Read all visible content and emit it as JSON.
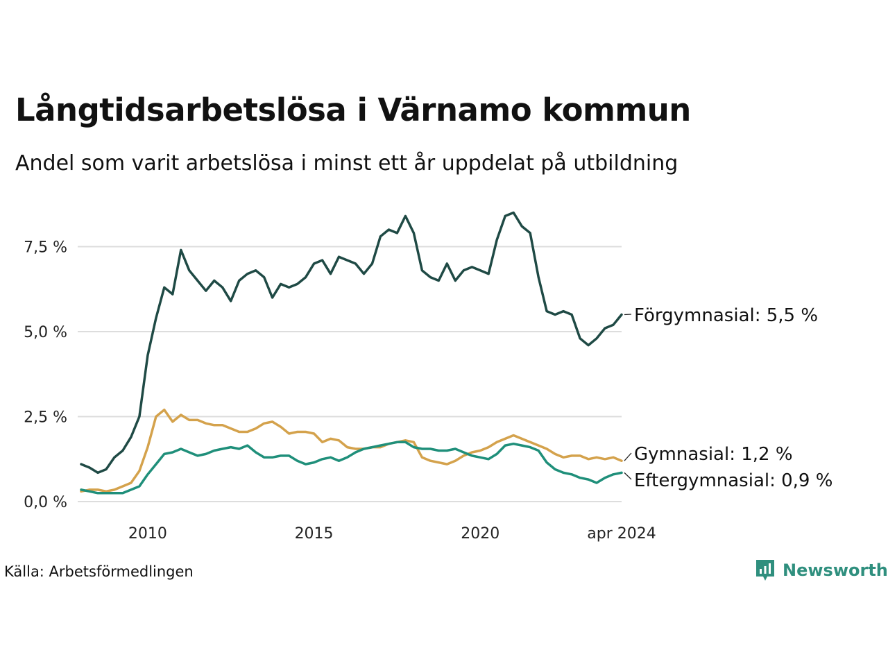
{
  "title": "Långtidsarbetslösa i Värnamo kommun",
  "subtitle": "Andel som varit arbetslösa i minst ett år uppdelat på utbildning",
  "source": "Källa: Arbetsförmedlingen",
  "brand": {
    "name": "Newsworthy",
    "icon": "bar-chart-speech-bubble-icon",
    "color": "#2f8f7e"
  },
  "chart_data": {
    "type": "line",
    "title": "Långtidsarbetslösa i Värnamo kommun",
    "subtitle": "Andel som varit arbetslösa i minst ett år uppdelat på utbildning",
    "xlabel": "",
    "ylabel": "",
    "x_range": [
      2008.0,
      2024.25
    ],
    "ylim": [
      0,
      9
    ],
    "y_ticks": [
      0,
      2.5,
      5,
      7.5
    ],
    "y_tick_labels": [
      "0,0 %",
      "2,5 %",
      "5,0 %",
      "7,5 %"
    ],
    "x_ticks": [
      2010,
      2015,
      2020,
      2024.25
    ],
    "x_tick_labels": [
      "2010",
      "2015",
      "2020",
      "apr 2024"
    ],
    "grid": true,
    "series": [
      {
        "name": "Förgymnasial",
        "end_label": "Förgymnasial: 5,5 %",
        "color": "#1f4a45",
        "x": [
          2008.0,
          2008.25,
          2008.5,
          2008.75,
          2009.0,
          2009.25,
          2009.5,
          2009.75,
          2010.0,
          2010.25,
          2010.5,
          2010.75,
          2011.0,
          2011.25,
          2011.5,
          2011.75,
          2012.0,
          2012.25,
          2012.5,
          2012.75,
          2013.0,
          2013.25,
          2013.5,
          2013.75,
          2014.0,
          2014.25,
          2014.5,
          2014.75,
          2015.0,
          2015.25,
          2015.5,
          2015.75,
          2016.0,
          2016.25,
          2016.5,
          2016.75,
          2017.0,
          2017.25,
          2017.5,
          2017.75,
          2018.0,
          2018.25,
          2018.5,
          2018.75,
          2019.0,
          2019.25,
          2019.5,
          2019.75,
          2020.0,
          2020.25,
          2020.5,
          2020.75,
          2021.0,
          2021.25,
          2021.5,
          2021.75,
          2022.0,
          2022.25,
          2022.5,
          2022.75,
          2023.0,
          2023.25,
          2023.5,
          2023.75,
          2024.0,
          2024.25
        ],
        "values": [
          1.1,
          1.0,
          0.85,
          0.95,
          1.3,
          1.5,
          1.9,
          2.5,
          4.3,
          5.4,
          6.3,
          6.1,
          7.4,
          6.8,
          6.5,
          6.2,
          6.5,
          6.3,
          5.9,
          6.5,
          6.7,
          6.8,
          6.6,
          6.0,
          6.4,
          6.3,
          6.4,
          6.6,
          7.0,
          7.1,
          6.7,
          7.2,
          7.1,
          7.0,
          6.7,
          7.0,
          7.8,
          8.0,
          7.9,
          8.4,
          7.9,
          6.8,
          6.6,
          6.5,
          7.0,
          6.5,
          6.8,
          6.9,
          6.8,
          6.7,
          7.7,
          8.4,
          8.5,
          8.1,
          7.9,
          6.6,
          5.6,
          5.5,
          5.6,
          5.5,
          4.8,
          4.6,
          4.8,
          5.1,
          5.2,
          5.5
        ]
      },
      {
        "name": "Gymnasial",
        "end_label": "Gymnasial: 1,2 %",
        "color": "#d4a24c",
        "x": [
          2008.0,
          2008.25,
          2008.5,
          2008.75,
          2009.0,
          2009.25,
          2009.5,
          2009.75,
          2010.0,
          2010.25,
          2010.5,
          2010.75,
          2011.0,
          2011.25,
          2011.5,
          2011.75,
          2012.0,
          2012.25,
          2012.5,
          2012.75,
          2013.0,
          2013.25,
          2013.5,
          2013.75,
          2014.0,
          2014.25,
          2014.5,
          2014.75,
          2015.0,
          2015.25,
          2015.5,
          2015.75,
          2016.0,
          2016.25,
          2016.5,
          2016.75,
          2017.0,
          2017.25,
          2017.5,
          2017.75,
          2018.0,
          2018.25,
          2018.5,
          2018.75,
          2019.0,
          2019.25,
          2019.5,
          2019.75,
          2020.0,
          2020.25,
          2020.5,
          2020.75,
          2021.0,
          2021.25,
          2021.5,
          2021.75,
          2022.0,
          2022.25,
          2022.5,
          2022.75,
          2023.0,
          2023.25,
          2023.5,
          2023.75,
          2024.0,
          2024.25
        ],
        "values": [
          0.3,
          0.35,
          0.35,
          0.3,
          0.35,
          0.45,
          0.55,
          0.9,
          1.6,
          2.5,
          2.7,
          2.35,
          2.55,
          2.4,
          2.4,
          2.3,
          2.25,
          2.25,
          2.15,
          2.05,
          2.05,
          2.15,
          2.3,
          2.35,
          2.2,
          2.0,
          2.05,
          2.05,
          2.0,
          1.75,
          1.85,
          1.8,
          1.6,
          1.55,
          1.55,
          1.6,
          1.6,
          1.7,
          1.75,
          1.8,
          1.75,
          1.3,
          1.2,
          1.15,
          1.1,
          1.2,
          1.35,
          1.45,
          1.5,
          1.6,
          1.75,
          1.85,
          1.95,
          1.85,
          1.75,
          1.65,
          1.55,
          1.4,
          1.3,
          1.35,
          1.35,
          1.25,
          1.3,
          1.25,
          1.3,
          1.2
        ]
      },
      {
        "name": "Eftergymnasial",
        "end_label": "Eftergymnasial: 0,9 %",
        "color": "#1f8f7a",
        "x": [
          2008.0,
          2008.25,
          2008.5,
          2008.75,
          2009.0,
          2009.25,
          2009.5,
          2009.75,
          2010.0,
          2010.25,
          2010.5,
          2010.75,
          2011.0,
          2011.25,
          2011.5,
          2011.75,
          2012.0,
          2012.25,
          2012.5,
          2012.75,
          2013.0,
          2013.25,
          2013.5,
          2013.75,
          2014.0,
          2014.25,
          2014.5,
          2014.75,
          2015.0,
          2015.25,
          2015.5,
          2015.75,
          2016.0,
          2016.25,
          2016.5,
          2016.75,
          2017.0,
          2017.25,
          2017.5,
          2017.75,
          2018.0,
          2018.25,
          2018.5,
          2018.75,
          2019.0,
          2019.25,
          2019.5,
          2019.75,
          2020.0,
          2020.25,
          2020.5,
          2020.75,
          2021.0,
          2021.25,
          2021.5,
          2021.75,
          2022.0,
          2022.25,
          2022.5,
          2022.75,
          2023.0,
          2023.25,
          2023.5,
          2023.75,
          2024.0,
          2024.25
        ],
        "values": [
          0.35,
          0.3,
          0.25,
          0.25,
          0.25,
          0.25,
          0.35,
          0.45,
          0.8,
          1.1,
          1.4,
          1.45,
          1.55,
          1.45,
          1.35,
          1.4,
          1.5,
          1.55,
          1.6,
          1.55,
          1.65,
          1.45,
          1.3,
          1.3,
          1.35,
          1.35,
          1.2,
          1.1,
          1.15,
          1.25,
          1.3,
          1.2,
          1.3,
          1.45,
          1.55,
          1.6,
          1.65,
          1.7,
          1.75,
          1.75,
          1.6,
          1.55,
          1.55,
          1.5,
          1.5,
          1.55,
          1.45,
          1.35,
          1.3,
          1.25,
          1.4,
          1.65,
          1.7,
          1.65,
          1.6,
          1.5,
          1.15,
          0.95,
          0.85,
          0.8,
          0.7,
          0.65,
          0.55,
          0.7,
          0.8,
          0.85
        ]
      }
    ]
  }
}
